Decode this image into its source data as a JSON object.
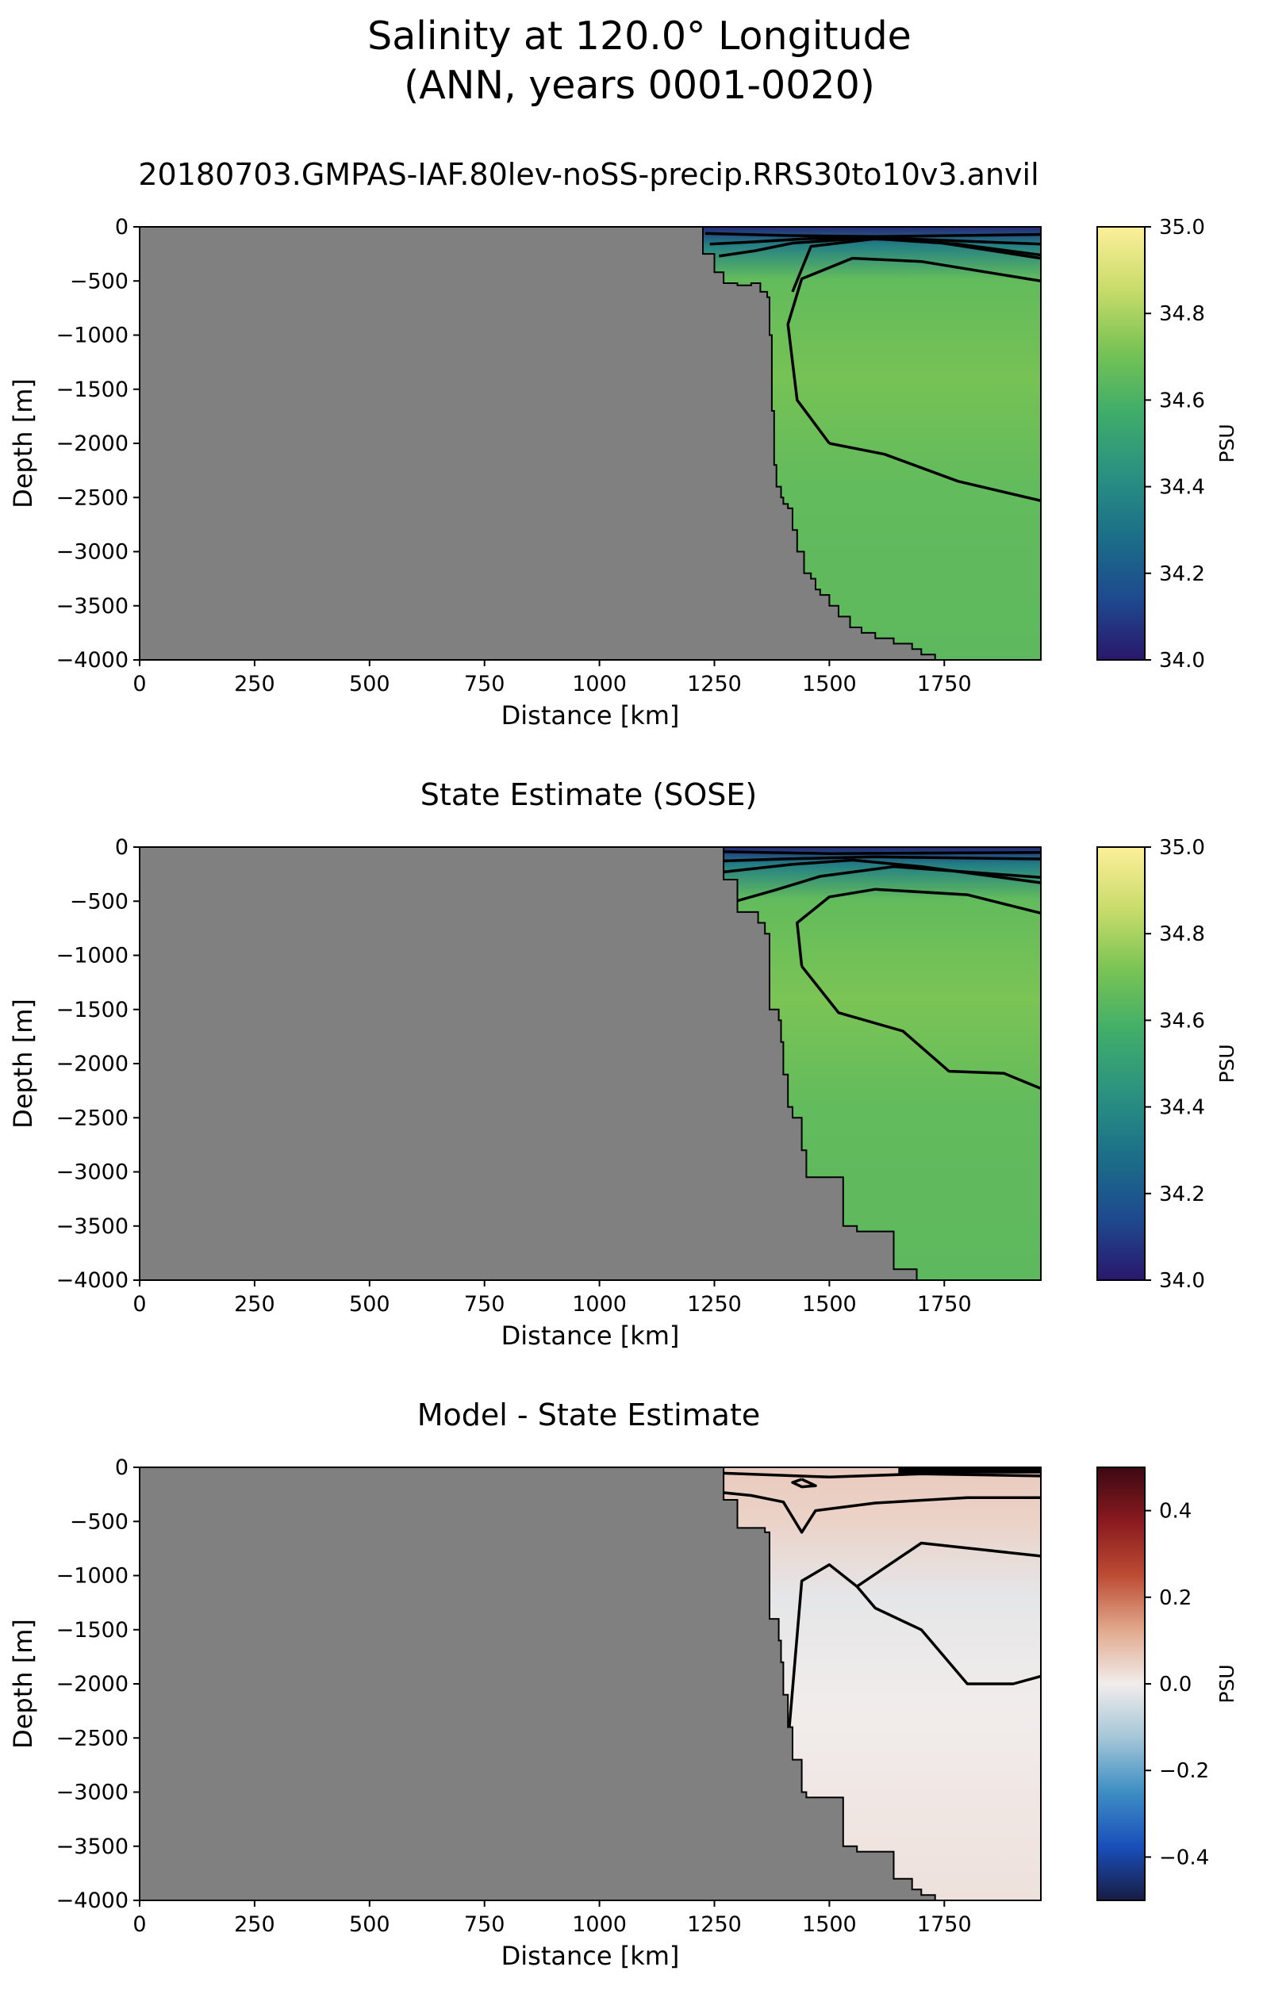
{
  "figure": {
    "title_line1": "Salinity at 120.0° Longitude",
    "title_line2": "(ANN, years 0001-0020)"
  },
  "chart_data": [
    {
      "type": "heatmap",
      "title": "20180703.GMPAS-IAF.80lev-noSS-precip.RRS30to10v3.anvil",
      "xlabel": "Distance [km]",
      "ylabel": "Depth [m]",
      "xlim": [
        0,
        1960
      ],
      "ylim": [
        -4000,
        0
      ],
      "xticks": [
        0,
        250,
        500,
        750,
        1000,
        1250,
        1500,
        1750
      ],
      "yticks": [
        0,
        -500,
        -1000,
        -1500,
        -2000,
        -2500,
        -3000,
        -3500,
        -4000
      ],
      "colorbar": {
        "label": "PSU",
        "range": [
          34.0,
          35.0
        ],
        "ticks": [
          "34.0",
          "34.2",
          "34.4",
          "34.6",
          "34.8",
          "35.0"
        ],
        "tick_values": [
          34.0,
          34.2,
          34.4,
          34.6,
          34.8,
          35.0
        ],
        "colormap": "haline",
        "stops": [
          "#2a186c",
          "#1e4a8f",
          "#1b6f88",
          "#2a9181",
          "#3fad6a",
          "#78c354",
          "#c9dc6a",
          "#fdef9a"
        ]
      },
      "land_color": "#808080",
      "field": {
        "surface_fresh": 34.05,
        "interior_max": 34.71,
        "interior_typical": 34.66,
        "deep_value": 34.65
      },
      "bathymetry": {
        "x_km": [
          1215,
          1225,
          1250,
          1270,
          1300,
          1330,
          1350,
          1365,
          1370,
          1375,
          1380,
          1385,
          1395,
          1400,
          1410,
          1420,
          1430,
          1445,
          1460,
          1470,
          1480,
          1500,
          1520,
          1545,
          1570,
          1600,
          1640,
          1680,
          1700,
          1730,
          1760,
          1900,
          1960
        ],
        "depth_m": [
          0,
          -250,
          -420,
          -520,
          -540,
          -520,
          -600,
          -650,
          -1000,
          -1700,
          -2200,
          -2400,
          -2500,
          -2560,
          -2600,
          -2800,
          -3000,
          -3200,
          -3250,
          -3350,
          -3400,
          -3500,
          -3600,
          -3700,
          -3750,
          -3800,
          -3850,
          -3900,
          -3950,
          -4000,
          -4000,
          -4000,
          -4000
        ]
      },
      "contour_levels": [
        34.0,
        34.2,
        34.4,
        34.6,
        34.7
      ]
    },
    {
      "type": "heatmap",
      "title": "State Estimate (SOSE)",
      "xlabel": "Distance [km]",
      "ylabel": "Depth [m]",
      "xlim": [
        0,
        1960
      ],
      "ylim": [
        -4000,
        0
      ],
      "xticks": [
        0,
        250,
        500,
        750,
        1000,
        1250,
        1500,
        1750
      ],
      "yticks": [
        0,
        -500,
        -1000,
        -1500,
        -2000,
        -2500,
        -3000,
        -3500,
        -4000
      ],
      "colorbar": {
        "label": "PSU",
        "range": [
          34.0,
          35.0
        ],
        "ticks": [
          "34.0",
          "34.2",
          "34.4",
          "34.6",
          "34.8",
          "35.0"
        ],
        "tick_values": [
          34.0,
          34.2,
          34.4,
          34.6,
          34.8,
          35.0
        ],
        "colormap": "haline",
        "stops": [
          "#2a186c",
          "#1e4a8f",
          "#1b6f88",
          "#2a9181",
          "#3fad6a",
          "#78c354",
          "#c9dc6a",
          "#fdef9a"
        ]
      },
      "land_color": "#808080",
      "field": {
        "surface_fresh": 34.05,
        "interior_max": 34.72,
        "interior_typical": 34.66,
        "deep_value": 34.65
      },
      "bathymetry": {
        "x_km": [
          1240,
          1270,
          1300,
          1345,
          1360,
          1370,
          1390,
          1395,
          1400,
          1410,
          1420,
          1440,
          1450,
          1500,
          1530,
          1560,
          1620,
          1640,
          1680,
          1690,
          1960
        ],
        "depth_m": [
          0,
          -300,
          -600,
          -700,
          -800,
          -1500,
          -1600,
          -1800,
          -2100,
          -2400,
          -2500,
          -2800,
          -3050,
          -3050,
          -3500,
          -3550,
          -3550,
          -3900,
          -3900,
          -4000,
          -4000
        ]
      },
      "contour_levels": [
        34.0,
        34.2,
        34.4,
        34.6,
        34.7
      ]
    },
    {
      "type": "heatmap",
      "title": "Model - State Estimate",
      "xlabel": "Distance [km]",
      "ylabel": "Depth [m]",
      "xlim": [
        0,
        1960
      ],
      "ylim": [
        -4000,
        0
      ],
      "xticks": [
        0,
        250,
        500,
        750,
        1000,
        1250,
        1500,
        1750
      ],
      "yticks": [
        0,
        -500,
        -1000,
        -1500,
        -2000,
        -2500,
        -3000,
        -3500,
        -4000
      ],
      "colorbar": {
        "label": "PSU",
        "range": [
          -0.5,
          0.5
        ],
        "ticks": [
          "−0.4",
          "−0.2",
          "0.0",
          "0.2",
          "0.4"
        ],
        "tick_values": [
          -0.4,
          -0.2,
          0.0,
          0.2,
          0.4
        ],
        "colormap": "balance",
        "stops": [
          "#181c43",
          "#1a4fbb",
          "#3d8ec4",
          "#a4c6d7",
          "#f1eceb",
          "#e1a88c",
          "#bd4c34",
          "#8a1a20",
          "#3c0912"
        ]
      },
      "land_color": "#808080",
      "field": {
        "surface_bias": 0.06,
        "interior_bias": -0.02,
        "deep_bias": 0.02
      },
      "bathymetry": {
        "x_km": [
          1240,
          1270,
          1300,
          1345,
          1360,
          1370,
          1390,
          1395,
          1400,
          1410,
          1420,
          1440,
          1450,
          1500,
          1530,
          1560,
          1620,
          1640,
          1680,
          1700,
          1730,
          1960
        ],
        "depth_m": [
          0,
          -300,
          -560,
          -560,
          -600,
          -1400,
          -1600,
          -1800,
          -2100,
          -2400,
          -2700,
          -3000,
          -3050,
          -3050,
          -3500,
          -3550,
          -3550,
          -3800,
          -3900,
          -3950,
          -4000,
          -4000
        ]
      },
      "contour_levels": [
        -0.1,
        0.0,
        0.1
      ]
    }
  ]
}
